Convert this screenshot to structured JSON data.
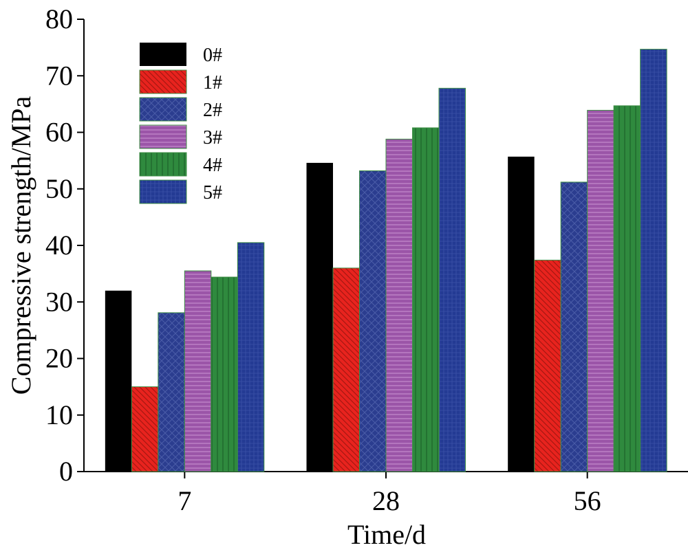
{
  "chart_data": {
    "type": "bar",
    "xlabel": "Time/d",
    "ylabel": "Compressive strength/MPa",
    "ylim": [
      0,
      80
    ],
    "yticks": [
      0,
      10,
      20,
      30,
      40,
      50,
      60,
      70,
      80
    ],
    "categories": [
      "7",
      "28",
      "56"
    ],
    "legend_position": "top-left",
    "series": [
      {
        "name": "0#",
        "color": "#000000",
        "hatch": "none",
        "values": [
          32.0,
          54.6,
          55.7
        ]
      },
      {
        "name": "1#",
        "color": "#e8231e",
        "hatch": "diagonal",
        "values": [
          15.0,
          36.0,
          37.4
        ]
      },
      {
        "name": "2#",
        "color": "#2b3d8f",
        "hatch": "crosshatch",
        "values": [
          28.1,
          53.2,
          51.2
        ]
      },
      {
        "name": "3#",
        "color": "#9b55a8",
        "hatch": "horizontal",
        "values": [
          35.5,
          58.8,
          63.9
        ]
      },
      {
        "name": "4#",
        "color": "#2f8a3e",
        "hatch": "vertical",
        "values": [
          34.4,
          60.8,
          64.7
        ]
      },
      {
        "name": "5#",
        "color": "#233a93",
        "hatch": "grid",
        "values": [
          40.5,
          67.8,
          74.7
        ]
      }
    ]
  }
}
